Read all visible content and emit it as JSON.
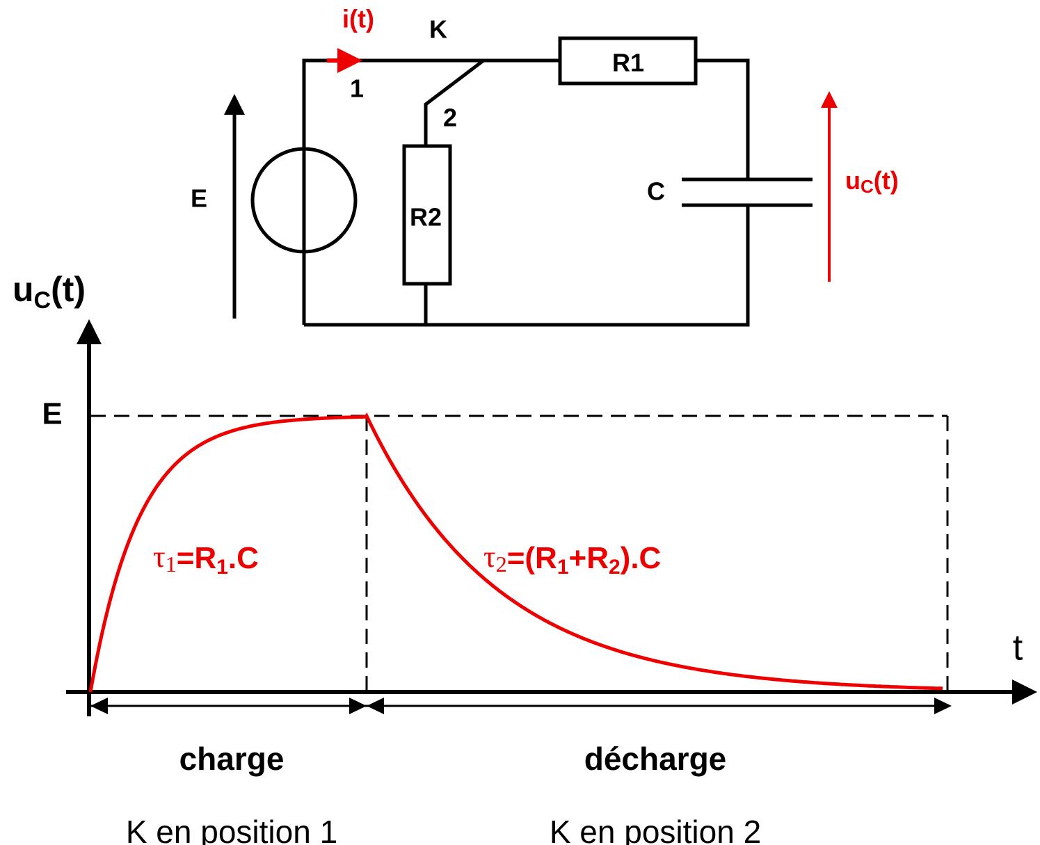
{
  "circuit": {
    "current": "i(t)",
    "switch": "K",
    "position_1": "1",
    "position_2": "2",
    "r1": "R1",
    "r2": "R2",
    "source": "E",
    "capacitor": "C",
    "voltage": {
      "symbol": "u",
      "index": "C",
      "tail": "(t)"
    }
  },
  "graph": {
    "y_label": {
      "symbol": "u",
      "index": "C",
      "tail": "(t)"
    },
    "y_level": "E",
    "x_label": "t",
    "tau1": {
      "symbol": "τ",
      "index": "1",
      "eq": "=R",
      "eq_index": "1",
      "tail": ".C"
    },
    "tau2": {
      "symbol": "τ",
      "index": "2",
      "eq": "=(R",
      "eq_index": "1",
      "mid": "+R",
      "mid_index": "2",
      "tail": ").C"
    },
    "phases": [
      {
        "name": "charge",
        "switch": "K en position 1"
      },
      {
        "name": "décharge",
        "switch": "K en position 2"
      }
    ]
  }
}
